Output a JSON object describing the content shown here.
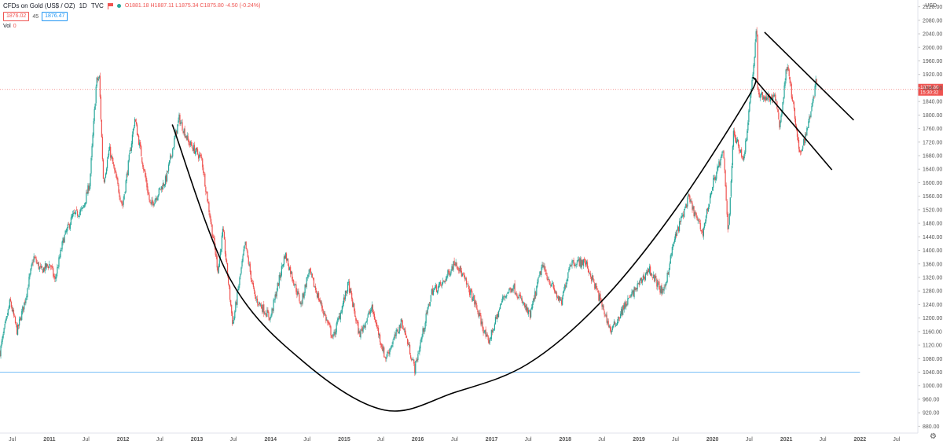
{
  "header": {
    "symbol": "CFDs on Gold (US$ / OZ)",
    "interval": "1D",
    "source": "TVC",
    "ohlc": "O1881.18 H1887.11 L1875.34 C1875.80 -4.50 (-0.24%)",
    "bid": "1876.02",
    "spread": "45",
    "ask": "1876.47",
    "vol_label": "Vol",
    "vol_value": "0",
    "currency": "USD"
  },
  "colors": {
    "up": "#26a69a",
    "down": "#ef5350",
    "trendline": "#000000",
    "price_line": "#ef5350",
    "support_line": "#2196f3",
    "axis_text": "#555555"
  },
  "icons": [
    "flag-icon",
    "status-dot-icon",
    "gear-icon"
  ],
  "chart_data": {
    "type": "candlestick",
    "title": "CFDs on Gold (US$ / OZ)",
    "interval": "1D",
    "ylim": [
      860,
      2140
    ],
    "x_range": [
      "2010-05-01",
      "2022-10-15"
    ],
    "y_ticks": [
      880,
      920,
      960,
      1000,
      1040,
      1080,
      1120,
      1160,
      1200,
      1240,
      1280,
      1320,
      1360,
      1400,
      1440,
      1480,
      1520,
      1560,
      1600,
      1640,
      1680,
      1720,
      1760,
      1800,
      1840,
      1880,
      1920,
      1960,
      2000,
      2040,
      2080,
      2120
    ],
    "y_tick_labels": [
      "880.00",
      "920.00",
      "960.00",
      "1000.00",
      "1040.00",
      "1080.00",
      "1120.00",
      "1160.00",
      "1200.00",
      "1240.00",
      "1280.00",
      "1320.00",
      "1360.00",
      "1400.00",
      "1440.00",
      "1480.00",
      "1520.00",
      "1560.00",
      "1600.00",
      "1640.00",
      "1680.00",
      "1720.00",
      "1760.00",
      "1800.00",
      "1840.00",
      "1880.00",
      "1920.00",
      "1960.00",
      "2000.00",
      "2040.00",
      "2080.00",
      "2120.00"
    ],
    "x_ticks": [
      {
        "label": "Jul",
        "date": "2010-07-01"
      },
      {
        "label": "2011",
        "date": "2011-01-01"
      },
      {
        "label": "Jul",
        "date": "2011-07-01"
      },
      {
        "label": "2012",
        "date": "2012-01-01"
      },
      {
        "label": "Jul",
        "date": "2012-07-01"
      },
      {
        "label": "2013",
        "date": "2013-01-01"
      },
      {
        "label": "Jul",
        "date": "2013-07-01"
      },
      {
        "label": "2014",
        "date": "2014-01-01"
      },
      {
        "label": "Jul",
        "date": "2014-07-01"
      },
      {
        "label": "2015",
        "date": "2015-01-01"
      },
      {
        "label": "Jul",
        "date": "2015-07-01"
      },
      {
        "label": "2016",
        "date": "2016-01-01"
      },
      {
        "label": "Jul",
        "date": "2016-07-01"
      },
      {
        "label": "2017",
        "date": "2017-01-01"
      },
      {
        "label": "Jul",
        "date": "2017-07-01"
      },
      {
        "label": "2018",
        "date": "2018-01-01"
      },
      {
        "label": "Jul",
        "date": "2018-07-01"
      },
      {
        "label": "2019",
        "date": "2019-01-01"
      },
      {
        "label": "Jul",
        "date": "2019-07-01"
      },
      {
        "label": "2020",
        "date": "2020-01-01"
      },
      {
        "label": "Jul",
        "date": "2020-07-01"
      },
      {
        "label": "2021",
        "date": "2021-01-01"
      },
      {
        "label": "Jul",
        "date": "2021-07-01"
      },
      {
        "label": "2022",
        "date": "2022-01-01"
      },
      {
        "label": "Jul",
        "date": "2022-07-01"
      }
    ],
    "price_path": [
      [
        "2010-05-01",
        1100
      ],
      [
        "2010-06-20",
        1250
      ],
      [
        "2010-07-25",
        1160
      ],
      [
        "2010-09-01",
        1250
      ],
      [
        "2010-10-15",
        1380
      ],
      [
        "2010-11-20",
        1340
      ],
      [
        "2011-01-05",
        1360
      ],
      [
        "2011-01-28",
        1310
      ],
      [
        "2011-03-10",
        1430
      ],
      [
        "2011-04-25",
        1500
      ],
      [
        "2011-06-15",
        1520
      ],
      [
        "2011-07-20",
        1600
      ],
      [
        "2011-08-22",
        1900
      ],
      [
        "2011-09-05",
        1910
      ],
      [
        "2011-09-26",
        1600
      ],
      [
        "2011-10-25",
        1700
      ],
      [
        "2011-12-29",
        1530
      ],
      [
        "2012-02-28",
        1790
      ],
      [
        "2012-05-16",
        1530
      ],
      [
        "2012-08-01",
        1610
      ],
      [
        "2012-10-05",
        1790
      ],
      [
        "2012-11-20",
        1720
      ],
      [
        "2013-01-25",
        1670
      ],
      [
        "2013-02-20",
        1560
      ],
      [
        "2013-04-16",
        1340
      ],
      [
        "2013-05-10",
        1460
      ],
      [
        "2013-06-28",
        1180
      ],
      [
        "2013-08-28",
        1420
      ],
      [
        "2013-10-15",
        1260
      ],
      [
        "2013-12-31",
        1200
      ],
      [
        "2014-03-14",
        1390
      ],
      [
        "2014-06-01",
        1240
      ],
      [
        "2014-07-10",
        1340
      ],
      [
        "2014-11-07",
        1140
      ],
      [
        "2015-01-22",
        1300
      ],
      [
        "2015-03-17",
        1150
      ],
      [
        "2015-05-18",
        1230
      ],
      [
        "2015-07-24",
        1080
      ],
      [
        "2015-10-14",
        1190
      ],
      [
        "2015-12-17",
        1050
      ],
      [
        "2016-03-11",
        1280
      ],
      [
        "2016-05-02",
        1300
      ],
      [
        "2016-07-06",
        1370
      ],
      [
        "2016-10-07",
        1250
      ],
      [
        "2016-12-15",
        1125
      ],
      [
        "2017-02-27",
        1260
      ],
      [
        "2017-04-17",
        1295
      ],
      [
        "2017-07-10",
        1205
      ],
      [
        "2017-09-08",
        1355
      ],
      [
        "2017-12-12",
        1240
      ],
      [
        "2018-01-25",
        1365
      ],
      [
        "2018-04-11",
        1365
      ],
      [
        "2018-06-01",
        1290
      ],
      [
        "2018-08-16",
        1160
      ],
      [
        "2018-10-26",
        1240
      ],
      [
        "2019-02-20",
        1345
      ],
      [
        "2019-05-02",
        1270
      ],
      [
        "2019-06-25",
        1430
      ],
      [
        "2019-09-04",
        1555
      ],
      [
        "2019-11-12",
        1450
      ],
      [
        "2020-01-08",
        1610
      ],
      [
        "2020-02-24",
        1690
      ],
      [
        "2020-03-19",
        1450
      ],
      [
        "2020-04-14",
        1745
      ],
      [
        "2020-06-05",
        1670
      ],
      [
        "2020-07-28",
        1980
      ],
      [
        "2020-08-07",
        2075
      ],
      [
        "2020-08-12",
        1865
      ],
      [
        "2020-09-23",
        1850
      ],
      [
        "2020-11-09",
        1850
      ],
      [
        "2020-11-30",
        1765
      ],
      [
        "2021-01-06",
        1960
      ],
      [
        "2021-03-08",
        1680
      ],
      [
        "2021-04-15",
        1760
      ],
      [
        "2021-06-01",
        1910
      ]
    ],
    "last_price": 1875.8,
    "last_price_label": "1875.80",
    "last_price_time": "15:30:32",
    "support_level": 1040,
    "support_end": "2022-01-01",
    "drawings": [
      {
        "name": "cup-curve",
        "type": "curve",
        "points": [
          [
            "2012-09-01",
            1772
          ],
          [
            "2013-06-15",
            1315
          ],
          [
            "2014-06-15",
            1070
          ],
          [
            "2015-07-20",
            928
          ],
          [
            "2016-07-01",
            980
          ],
          [
            "2017-07-01",
            1065
          ],
          [
            "2018-07-01",
            1250
          ],
          [
            "2019-07-01",
            1520
          ],
          [
            "2020-07-01",
            1858
          ],
          [
            "2020-07-20",
            1912
          ]
        ]
      },
      {
        "name": "channel-upper-line",
        "type": "line",
        "points": [
          [
            "2020-09-15",
            2045
          ],
          [
            "2021-12-01",
            1785
          ]
        ]
      },
      {
        "name": "channel-lower-line",
        "type": "line",
        "points": [
          [
            "2020-07-20",
            1912
          ],
          [
            "2021-08-15",
            1638
          ]
        ]
      }
    ]
  }
}
